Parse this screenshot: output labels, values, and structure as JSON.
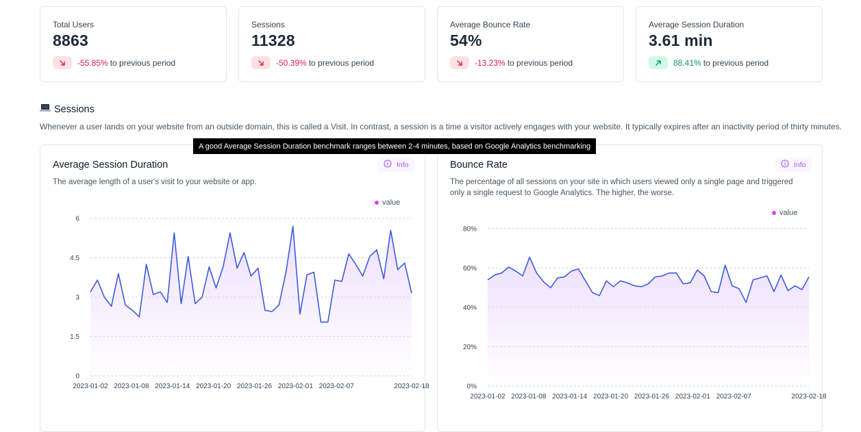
{
  "kpis": [
    {
      "label": "Total Users",
      "value": "8863",
      "change": "-55.85%",
      "direction": "down",
      "suffix": "to previous period"
    },
    {
      "label": "Sessions",
      "value": "11328",
      "change": "-50.39%",
      "direction": "down",
      "suffix": "to previous period"
    },
    {
      "label": "Average Bounce Rate",
      "value": "54%",
      "change": "-13.23%",
      "direction": "down",
      "suffix": "to previous period"
    },
    {
      "label": "Average Session Duration",
      "value": "3.61 min",
      "change": "88.41%",
      "direction": "up",
      "suffix": "to previous period"
    }
  ],
  "section": {
    "icon": "laptop-icon",
    "title": "Sessions",
    "description": "Whenever a user lands on your website from an outside domain, this is called a Visit. In contrast, a session is a time a visitor actively engages with your website. It typically expires after an inactivity period of thirty minutes."
  },
  "tooltip": "A good Average Session Duration benchmark ranges between 2-4 minutes, based on Google Analytics benchmarking",
  "colors": {
    "line": "#3b5bdb",
    "fill": "#e9d5ff",
    "legend_dot": "#d946ef",
    "down": "#e11d48",
    "up": "#059669"
  },
  "panels": [
    {
      "title": "Average Session Duration",
      "description": "The average length of a user's visit to your website or app.",
      "info_label": "Info",
      "legend": "value"
    },
    {
      "title": "Bounce Rate",
      "description": "The percentage of all sessions on your site in which users viewed only a single page and triggered only a single request to Google Analytics. The higher, the worse.",
      "info_label": "Info",
      "legend": "value"
    }
  ],
  "chart_data": [
    {
      "type": "area",
      "title": "Average Session Duration",
      "x_ticks": [
        "2023-01-02",
        "2023-01-08",
        "2023-01-14",
        "2023-01-20",
        "2023-01-26",
        "2023-02-01",
        "2023-02-07",
        "2023-02-18"
      ],
      "y_ticks": [
        "0",
        "1.5",
        "3",
        "4.5",
        "6"
      ],
      "ylim": [
        0,
        6
      ],
      "x_start": "2023-01-02",
      "x_end": "2023-02-18",
      "grid": true,
      "legend": "top-right",
      "series": [
        {
          "name": "value",
          "values": [
            3.2,
            3.65,
            3.0,
            2.65,
            3.9,
            2.7,
            2.5,
            2.25,
            4.25,
            3.1,
            3.2,
            2.8,
            5.45,
            2.75,
            4.55,
            2.75,
            3.0,
            4.15,
            3.35,
            4.15,
            5.45,
            4.1,
            4.7,
            3.8,
            4.1,
            2.5,
            2.45,
            2.7,
            3.95,
            5.7,
            2.35,
            3.85,
            3.95,
            2.05,
            2.05,
            3.65,
            3.6,
            4.65,
            4.25,
            3.8,
            4.55,
            4.8,
            3.7,
            5.55,
            4.05,
            4.3,
            3.15
          ]
        }
      ]
    },
    {
      "type": "area",
      "title": "Bounce Rate",
      "x_ticks": [
        "2023-01-02",
        "2023-01-08",
        "2023-01-14",
        "2023-01-20",
        "2023-01-26",
        "2023-02-01",
        "2023-02-07",
        "2023-02-18"
      ],
      "y_ticks": [
        "0%",
        "20%",
        "40%",
        "60%",
        "80%"
      ],
      "ylim": [
        0,
        80
      ],
      "x_start": "2023-01-02",
      "x_end": "2023-02-18",
      "grid": true,
      "legend": "top-right",
      "series": [
        {
          "name": "value",
          "values": [
            54,
            56.5,
            57.5,
            60.5,
            58.5,
            56,
            65.5,
            57.5,
            53,
            50,
            55,
            55.5,
            58.5,
            59.5,
            53.5,
            47.5,
            46,
            53.5,
            50.5,
            53.5,
            52.5,
            51,
            50.5,
            52,
            55.5,
            56,
            57.5,
            57.5,
            52,
            52.5,
            59,
            56,
            48,
            47.5,
            61.5,
            51,
            49.5,
            42.5,
            54,
            55,
            56,
            48,
            56.5,
            48.5,
            51,
            49,
            55.5
          ]
        }
      ]
    }
  ]
}
